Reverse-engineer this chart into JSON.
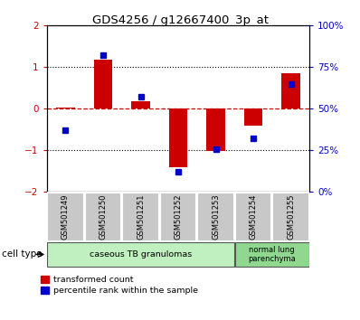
{
  "title": "GDS4256 / g12667400_3p_at",
  "samples": [
    "GSM501249",
    "GSM501250",
    "GSM501251",
    "GSM501252",
    "GSM501253",
    "GSM501254",
    "GSM501255"
  ],
  "red_values": [
    0.02,
    1.18,
    0.18,
    -1.4,
    -1.02,
    -0.4,
    0.85
  ],
  "blue_values_raw": [
    37,
    82,
    57,
    12,
    26,
    32,
    65
  ],
  "ylim_red": [
    -2,
    2
  ],
  "ylim_blue": [
    0,
    100
  ],
  "red_color": "#cc0000",
  "blue_color": "#0000cc",
  "bar_width": 0.5,
  "legend_red": "transformed count",
  "legend_blue": "percentile rank within the sample",
  "ct_label1": "caseous TB granulomas",
  "ct_label2": "normal lung\nparenchyma",
  "ct_color1": "#c0f0c0",
  "ct_color2": "#90d890"
}
